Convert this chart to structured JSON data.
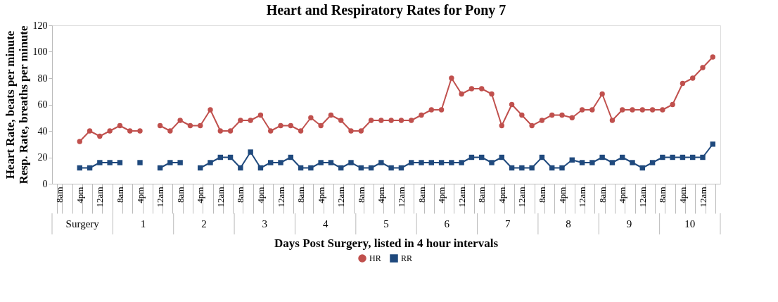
{
  "chart_data": {
    "type": "line",
    "title": "Heart and Respiratory Rates for Pony 7",
    "xlabel": "Days Post Surgery, listed in 4 hour intervals",
    "ylabel": "Heart  Rate, beats per minute\nResp. Rate, breaths per minute",
    "categories": [
      "8am",
      null,
      "4pm",
      null,
      "12am",
      null,
      "8am",
      null,
      "4pm",
      null,
      "12am",
      null,
      "8am",
      null,
      "4pm",
      null,
      "12am",
      null,
      "8am",
      null,
      "4pm",
      null,
      "12am",
      null,
      "8am",
      null,
      "4pm",
      null,
      "12am",
      null,
      "8am",
      null,
      "4pm",
      null,
      "12am",
      null,
      "8am",
      null,
      "4pm",
      null,
      "12am",
      null,
      "8am",
      null,
      "4pm",
      null,
      "12am",
      null,
      "8am",
      null,
      "4pm",
      null,
      "12am",
      null,
      "8am",
      null,
      "4pm",
      null,
      "12am",
      null,
      "8am",
      null,
      "4pm",
      null,
      "12am",
      null
    ],
    "series": [
      {
        "name": "HR",
        "color": "#c0504d",
        "marker": "circle",
        "values": [
          null,
          null,
          32,
          40,
          36,
          40,
          44,
          40,
          40,
          null,
          44,
          40,
          48,
          44,
          44,
          56,
          40,
          40,
          48,
          48,
          52,
          40,
          44,
          44,
          40,
          50,
          44,
          52,
          48,
          40,
          40,
          48,
          48,
          48,
          48,
          48,
          52,
          56,
          56,
          80,
          68,
          72,
          72,
          68,
          44,
          60,
          52,
          44,
          48,
          52,
          52,
          50,
          56,
          56,
          68,
          48,
          56,
          56,
          56,
          56,
          56,
          60,
          76,
          80,
          88,
          96
        ]
      },
      {
        "name": "RR",
        "color": "#1f497d",
        "marker": "square",
        "values": [
          null,
          null,
          12,
          12,
          16,
          16,
          16,
          null,
          16,
          null,
          12,
          16,
          16,
          null,
          12,
          16,
          20,
          20,
          12,
          24,
          12,
          16,
          16,
          20,
          12,
          12,
          16,
          16,
          12,
          16,
          12,
          12,
          16,
          12,
          12,
          16,
          16,
          16,
          16,
          16,
          16,
          20,
          20,
          16,
          20,
          12,
          12,
          12,
          20,
          12,
          12,
          18,
          16,
          16,
          20,
          16,
          20,
          16,
          12,
          16,
          20,
          20,
          20,
          20,
          20,
          30
        ]
      }
    ],
    "ylim": [
      0,
      120
    ],
    "yticks": [
      0,
      20,
      40,
      60,
      80,
      100,
      120
    ],
    "annotations": [
      "Surgery",
      "1",
      "2",
      "3",
      "4",
      "5",
      "6",
      "7",
      "8",
      "9",
      "10"
    ],
    "legend": "bottom"
  }
}
